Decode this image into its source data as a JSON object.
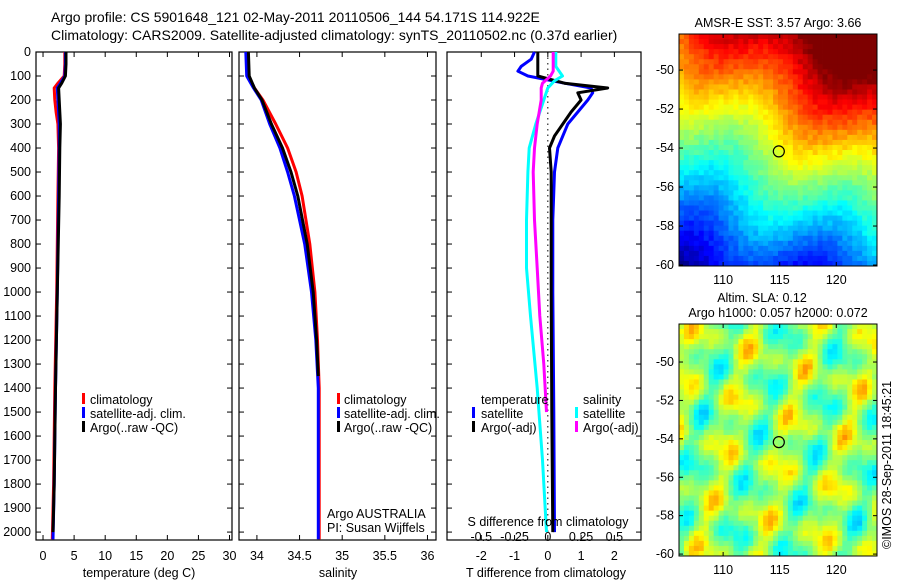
{
  "title": {
    "line1": "Argo profile: CS 5901648_121 02-May-2011 20110506_144 54.171S 114.922E",
    "line2": "Climatology: CARS2009. Satellite-adjusted climatology: synTS_20110502.nc (0.37d earlier)"
  },
  "colors": {
    "climatology": "#ff0000",
    "satellite": "#0000ff",
    "argo": "#000000",
    "sal_satellite": "#00ffff",
    "sal_argo": "#ff00ff"
  },
  "depth_axis": {
    "ticks": [
      0,
      100,
      200,
      300,
      400,
      500,
      600,
      700,
      800,
      900,
      1000,
      1100,
      1200,
      1300,
      1400,
      1500,
      1600,
      1700,
      1800,
      1900,
      2000
    ],
    "ylim": [
      0,
      2033
    ]
  },
  "chart_data": [
    {
      "type": "line",
      "id": "temperature",
      "xlabel": "temperature (deg C)",
      "xlim": [
        -1.13,
        30.4
      ],
      "xticks": [
        0,
        5,
        10,
        15,
        20,
        25,
        30
      ],
      "legend": [
        "climatology",
        "satellite-adj. clim.",
        "Argo(..raw -QC)"
      ],
      "series": [
        {
          "name": "climatology",
          "color": "#ff0000",
          "depth": [
            0,
            50,
            100,
            130,
            150,
            200,
            250,
            300,
            400,
            600,
            1000,
            1400,
            1800,
            2030
          ],
          "values": [
            3.5,
            3.5,
            3.4,
            2.4,
            1.8,
            1.9,
            2.1,
            2.4,
            2.5,
            2.4,
            2.2,
            1.9,
            1.7,
            1.5
          ]
        },
        {
          "name": "satellite-adj. clim.",
          "color": "#0000ff",
          "depth": [
            0,
            50,
            100,
            130,
            150,
            200,
            250,
            300,
            400,
            600,
            1000,
            1400,
            1800,
            2030
          ],
          "values": [
            3.6,
            3.6,
            3.5,
            2.8,
            2.3,
            2.4,
            2.5,
            2.6,
            2.6,
            2.5,
            2.3,
            2.0,
            1.8,
            1.6
          ]
        },
        {
          "name": "Argo(..raw -QC)",
          "color": "#000000",
          "depth": [
            0,
            50,
            100,
            130,
            150,
            200,
            250,
            300,
            400,
            600,
            1000,
            1400,
            1800,
            2000
          ],
          "values": [
            3.7,
            3.7,
            3.6,
            3.0,
            2.5,
            2.6,
            2.7,
            2.8,
            2.7,
            2.6,
            2.3,
            2.0,
            1.8,
            1.6
          ]
        }
      ]
    },
    {
      "type": "line",
      "id": "salinity",
      "xlabel": "salinity",
      "xlim": [
        33.79,
        36.1
      ],
      "xticks": [
        34,
        34.5,
        35,
        35.5,
        36
      ],
      "legend": [
        "climatology",
        "satellite-adj. clim.",
        "Argo(..raw -QC)"
      ],
      "annotation": [
        "Argo AUSTRALIA",
        "PI: Susan Wijffels"
      ],
      "series": [
        {
          "name": "climatology",
          "color": "#ff0000",
          "depth": [
            0,
            100,
            150,
            200,
            300,
            400,
            500,
            600,
            800,
            1000,
            1200,
            1400,
            1700,
            2030
          ],
          "values": [
            33.88,
            33.9,
            33.97,
            34.07,
            34.22,
            34.36,
            34.46,
            34.53,
            34.62,
            34.68,
            34.71,
            34.73,
            34.73,
            34.73
          ]
        },
        {
          "name": "satellite-adj. clim.",
          "color": "#0000ff",
          "depth": [
            0,
            100,
            150,
            200,
            300,
            400,
            500,
            600,
            800,
            1000,
            1200,
            1400,
            1700,
            2030
          ],
          "values": [
            33.87,
            33.88,
            33.96,
            34.05,
            34.15,
            34.27,
            34.36,
            34.44,
            34.56,
            34.64,
            34.69,
            34.72,
            34.72,
            34.72
          ]
        },
        {
          "name": "Argo(..raw -QC)",
          "color": "#000000",
          "depth": [
            0,
            100,
            150,
            200,
            300,
            400,
            500,
            600,
            800,
            1000,
            1200,
            1350
          ],
          "values": [
            33.9,
            33.91,
            33.97,
            34.06,
            34.17,
            34.3,
            34.4,
            34.48,
            34.59,
            34.66,
            34.7,
            34.72
          ]
        }
      ]
    },
    {
      "type": "line",
      "id": "differences",
      "xlabel": "T difference from climatology",
      "xlabel2": "S difference from climatology",
      "xlim": [
        -3.03,
        2.8
      ],
      "xticks": [
        -2,
        -1,
        0,
        1,
        2
      ],
      "xticks2": [
        -0.5,
        -0.25,
        0,
        0.25,
        0.5
      ],
      "s_scale": 4,
      "legend_temperature": {
        "title": "temperature",
        "items": [
          "satellite",
          "Argo(-adj)"
        ]
      },
      "legend_salinity": {
        "title": "salinity",
        "items": [
          "satellite",
          "Argo(-adj)"
        ]
      },
      "series": [
        {
          "name": "temperature satellite",
          "color": "#0000ff",
          "kind": "T",
          "depth": [
            0,
            30,
            60,
            80,
            100,
            130,
            150,
            170,
            200,
            250,
            300,
            400,
            500,
            700,
            1000,
            1500,
            2000
          ],
          "values": [
            -0.4,
            -0.5,
            -0.8,
            -0.9,
            -0.6,
            0.5,
            1.3,
            1.35,
            1.2,
            0.9,
            0.6,
            0.3,
            0.2,
            0.15,
            0.15,
            0.18,
            0.2
          ]
        },
        {
          "name": "temperature Argo(-adj)",
          "color": "#000000",
          "kind": "T",
          "depth": [
            0,
            30,
            60,
            100,
            130,
            150,
            170,
            200,
            250,
            300,
            350,
            400,
            500,
            700,
            1000,
            1500,
            2000
          ],
          "values": [
            -0.3,
            -0.3,
            -0.3,
            -0.3,
            0.5,
            1.8,
            0.9,
            1.0,
            0.7,
            0.45,
            0.2,
            0.05,
            0.1,
            0.1,
            0.1,
            0.12,
            0.15
          ]
        },
        {
          "name": "salinity satellite",
          "color": "#00ffff",
          "kind": "S",
          "depth": [
            0,
            60,
            100,
            120,
            150,
            200,
            300,
            400,
            500,
            700,
            900,
            1100,
            1400,
            1700,
            2000
          ],
          "values": [
            0.06,
            0.06,
            0.11,
            0.05,
            0.0,
            -0.03,
            -0.09,
            -0.14,
            -0.15,
            -0.16,
            -0.16,
            -0.13,
            -0.08,
            -0.04,
            -0.01
          ]
        },
        {
          "name": "salinity Argo(-adj)",
          "color": "#ff00ff",
          "kind": "S",
          "depth": [
            0,
            80,
            100,
            130,
            150,
            200,
            300,
            400,
            500,
            700,
            900,
            1100,
            1300,
            1500
          ],
          "values": [
            0.04,
            0.04,
            0.02,
            -0.04,
            -0.05,
            -0.05,
            -0.08,
            -0.1,
            -0.11,
            -0.1,
            -0.08,
            -0.06,
            -0.03,
            -0.01
          ]
        }
      ]
    }
  ],
  "maps": [
    {
      "id": "sst",
      "title": "AMSR-E SST: 3.57 Argo: 3.66",
      "lon_ticks": [
        110,
        115,
        120
      ],
      "lat_ticks": [
        -50,
        -52,
        -54,
        -56,
        -58,
        -60
      ],
      "lonlim": [
        106.1,
        123.6
      ],
      "latlim": [
        -48.15,
        -60.05
      ],
      "marker": {
        "lon": 114.922,
        "lat": -54.171
      }
    },
    {
      "id": "sla",
      "title1": "Altim. SLA: 0.12",
      "title2": "Argo h1000: 0.057 h2000: 0.072",
      "lon_ticks": [
        110,
        115,
        120
      ],
      "lat_ticks": [
        -50,
        -52,
        -54,
        -56,
        -58,
        -60
      ],
      "lonlim": [
        106.1,
        123.6
      ],
      "latlim": [
        -48.02,
        -60.1
      ],
      "marker": {
        "lon": 114.922,
        "lat": -54.171
      }
    }
  ],
  "copyright": "©IMOS 28-Sep-2011 18:45:21"
}
